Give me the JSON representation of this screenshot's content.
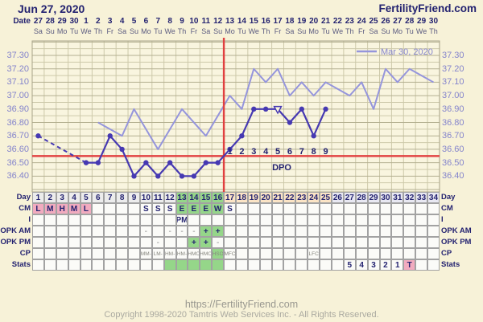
{
  "header": {
    "title": "Jun 27, 2020",
    "brand": "FertilityFriend.com"
  },
  "date_row": {
    "label": "Date",
    "dates": [
      27,
      28,
      29,
      30,
      1,
      2,
      3,
      4,
      5,
      6,
      7,
      8,
      9,
      10,
      11,
      12,
      13,
      14,
      15,
      16,
      17,
      18,
      19,
      20,
      21,
      22,
      23,
      24,
      25,
      26,
      27,
      28,
      29,
      30
    ],
    "weekdays": [
      "Sa",
      "Su",
      "Mo",
      "Tu",
      "We",
      "Th",
      "Fr",
      "Sa",
      "Su",
      "Mo",
      "Tu",
      "We",
      "Th",
      "Fr",
      "Sa",
      "Su",
      "Mo",
      "Tu",
      "We",
      "Th",
      "Fr",
      "Sa",
      "Su",
      "Mo",
      "Tu",
      "We",
      "Th",
      "Fr",
      "Sa",
      "Su",
      "Mo",
      "Tu",
      "We",
      "Th"
    ]
  },
  "chart_data": {
    "type": "line",
    "title": "Basal body temperature chart",
    "x_days": 34,
    "y_axis": {
      "tick_labels": [
        "37.30",
        "37.20",
        "37.10",
        "37.00",
        "36.90",
        "36.80",
        "36.70",
        "36.60",
        "36.50",
        "36.40"
      ],
      "min": 36.3,
      "max": 37.4,
      "grid_step": 0.05,
      "unit": "°C"
    },
    "legend": {
      "label": "Mar 30, 2020",
      "position": "top-right"
    },
    "coverline_temp": 36.55,
    "ovulation_after_day": 16,
    "series": [
      {
        "name": "current-cycle",
        "style": "solid-with-dots",
        "color": "#4639b2",
        "points": [
          [
            1,
            36.7
          ],
          [
            5,
            36.5
          ],
          [
            6,
            36.5
          ],
          [
            7,
            36.7
          ],
          [
            8,
            36.6
          ],
          [
            9,
            36.4
          ],
          [
            10,
            36.5
          ],
          [
            11,
            36.4
          ],
          [
            12,
            36.5
          ],
          [
            13,
            36.4
          ],
          [
            14,
            36.4
          ],
          [
            15,
            36.5
          ],
          [
            16,
            36.5
          ],
          [
            17,
            36.6
          ],
          [
            18,
            36.7
          ],
          [
            19,
            36.9
          ],
          [
            20,
            36.9
          ],
          [
            21,
            36.9
          ],
          [
            22,
            36.8
          ],
          [
            23,
            36.9
          ],
          [
            24,
            36.7
          ],
          [
            25,
            36.9
          ]
        ],
        "dashed_segment_days": [
          1,
          5
        ],
        "open_triangle_day": 21
      },
      {
        "name": "overlay-cycle",
        "label": "Mar 30, 2020",
        "style": "solid",
        "color": "#9595dc",
        "points": [
          [
            6,
            36.8
          ],
          [
            7,
            36.75
          ],
          [
            8,
            36.7
          ],
          [
            9,
            36.9
          ],
          [
            10,
            36.75
          ],
          [
            11,
            36.6
          ],
          [
            12,
            36.75
          ],
          [
            13,
            36.9
          ],
          [
            14,
            36.8
          ],
          [
            15,
            36.7
          ],
          [
            16,
            36.85
          ],
          [
            17,
            37.0
          ],
          [
            18,
            36.9
          ],
          [
            19,
            37.2
          ],
          [
            20,
            37.1
          ],
          [
            21,
            37.2
          ],
          [
            22,
            37.0
          ],
          [
            23,
            37.1
          ],
          [
            24,
            37.0
          ],
          [
            25,
            37.1
          ],
          [
            26,
            37.05
          ],
          [
            27,
            37.0
          ],
          [
            28,
            37.1
          ],
          [
            29,
            36.9
          ],
          [
            30,
            37.2
          ],
          [
            31,
            37.1
          ],
          [
            32,
            37.2
          ],
          [
            33,
            37.15
          ],
          [
            34,
            37.1
          ]
        ]
      }
    ],
    "dpo": {
      "label": "DPO",
      "days": [
        17,
        18,
        19,
        20,
        21,
        22,
        23,
        24,
        25
      ],
      "labels": [
        "1",
        "2",
        "3",
        "4",
        "5",
        "6",
        "7",
        "8",
        "9"
      ]
    }
  },
  "table": {
    "rows": [
      {
        "label": "Day",
        "cell_name": "day-cell",
        "numbers": true,
        "bands": [
          {
            "from": 1,
            "to": 12,
            "bg": "gray"
          },
          {
            "from": 13,
            "to": 16,
            "bg": "green"
          },
          {
            "from": 17,
            "to": 25,
            "bg": "peach"
          },
          {
            "from": 26,
            "to": 34,
            "bg": "lavender"
          }
        ]
      },
      {
        "label": "CM",
        "cell_name": "cervical-mucus-cell",
        "entries": [
          {
            "d": 1,
            "v": "L",
            "bg": "pink"
          },
          {
            "d": 2,
            "v": "M",
            "bg": "pink"
          },
          {
            "d": 3,
            "v": "H",
            "bg": "pink"
          },
          {
            "d": 4,
            "v": "M",
            "bg": "pink"
          },
          {
            "d": 5,
            "v": "L",
            "bg": "pink"
          },
          {
            "d": 10,
            "v": "S"
          },
          {
            "d": 11,
            "v": "S"
          },
          {
            "d": 12,
            "v": "S"
          },
          {
            "d": 13,
            "v": "E",
            "bg": "green"
          },
          {
            "d": 14,
            "v": "E",
            "bg": "green"
          },
          {
            "d": 15,
            "v": "E",
            "bg": "green"
          },
          {
            "d": 16,
            "v": "W",
            "bg": "green"
          },
          {
            "d": 17,
            "v": "S"
          }
        ]
      },
      {
        "label": "I",
        "cell_name": "intercourse-cell",
        "entries": [
          {
            "d": 13,
            "v": "PM"
          }
        ]
      },
      {
        "label": "OPK AM",
        "cell_name": "opk-am-cell",
        "cls": "row-opk",
        "entries": [
          {
            "d": 10,
            "v": "-"
          },
          {
            "d": 12,
            "v": "-"
          },
          {
            "d": 13,
            "v": "-"
          },
          {
            "d": 14,
            "v": "-"
          },
          {
            "d": 15,
            "v": "+",
            "bg": "green"
          },
          {
            "d": 16,
            "v": "+",
            "bg": "green"
          }
        ]
      },
      {
        "label": "OPK PM",
        "cell_name": "opk-pm-cell",
        "cls": "row-opk",
        "entries": [
          {
            "d": 11,
            "v": "-"
          },
          {
            "d": 14,
            "v": "+",
            "bg": "green"
          },
          {
            "d": 15,
            "v": "+",
            "bg": "green"
          },
          {
            "d": 16,
            "v": "-"
          }
        ]
      },
      {
        "label": "CP",
        "cell_name": "cervical-position-cell",
        "cls": "row-cp",
        "entries": [
          {
            "d": 10,
            "v": "MM-"
          },
          {
            "d": 11,
            "v": "LM-"
          },
          {
            "d": 12,
            "v": "HM-"
          },
          {
            "d": 13,
            "v": "HM-"
          },
          {
            "d": 14,
            "v": "HMO"
          },
          {
            "d": 15,
            "v": "HMO"
          },
          {
            "d": 16,
            "v": "HSO",
            "bg": "green"
          },
          {
            "d": 17,
            "v": "MFC"
          },
          {
            "d": 24,
            "v": "LFC"
          }
        ]
      },
      {
        "label": "Stats",
        "cell_name": "stats-cell",
        "entries": [
          {
            "d": 12,
            "bg": "green"
          },
          {
            "d": 13,
            "bg": "green"
          },
          {
            "d": 14,
            "bg": "green"
          },
          {
            "d": 15,
            "bg": "green"
          },
          {
            "d": 16,
            "bg": "green"
          },
          {
            "d": 27,
            "v": "5"
          },
          {
            "d": 28,
            "v": "4"
          },
          {
            "d": 29,
            "v": "3"
          },
          {
            "d": 30,
            "v": "2"
          },
          {
            "d": 31,
            "v": "1"
          },
          {
            "d": 32,
            "v": "T",
            "bg": "pink"
          }
        ]
      }
    ]
  },
  "footer": {
    "url": "https://FertilityFriend.com",
    "copyright": "Copyright 1998-2020 Tamtris Web Services Inc. - All Rights Reserved."
  },
  "colors": {
    "page_bg": "#f7f2d8",
    "plot_bg": "#f9f5df",
    "grid_minor": "#cdc9aa",
    "grid_major": "#b3af90",
    "crosshair_red": "#e14040",
    "temp_line": "#4639b2",
    "overlay_line": "#9595dc",
    "axis_label": "#8484cc",
    "navy_text": "#232270",
    "fertile_green": "#95d689",
    "menses_pink": "#f2abbf",
    "luteal_peach": "#fbe4c5",
    "post_lavender": "#e8e8f2"
  }
}
